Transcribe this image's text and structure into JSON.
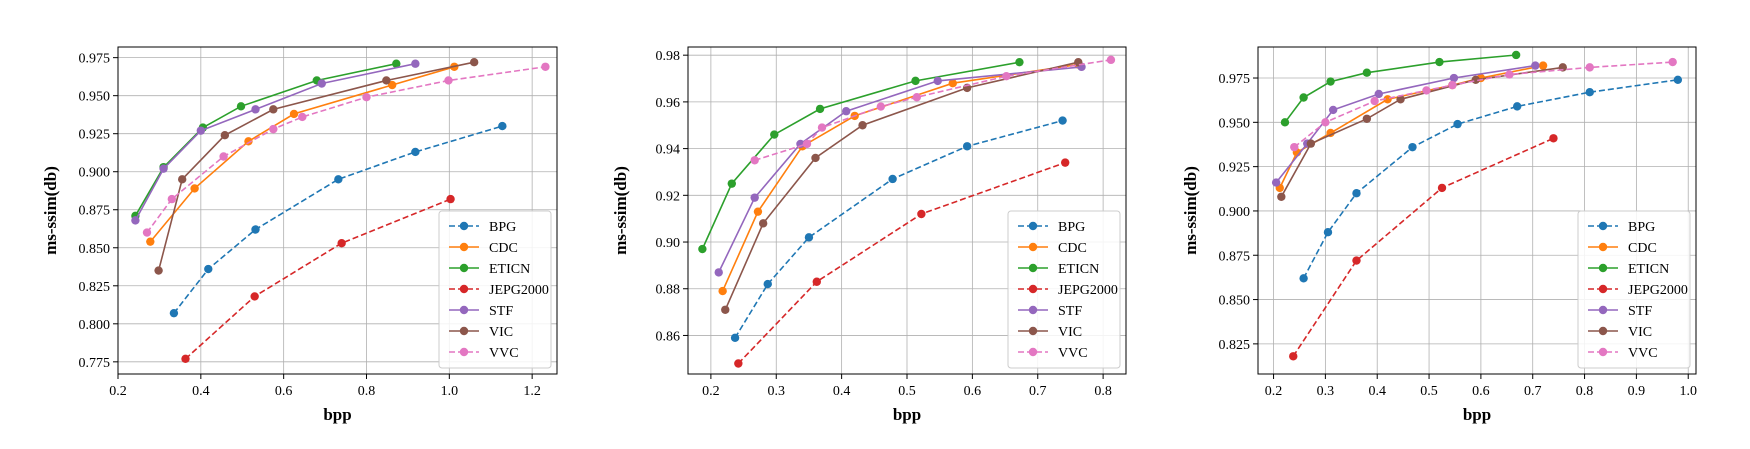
{
  "chart_data": [
    {
      "type": "line",
      "title": "",
      "xlabel": "bpp",
      "ylabel": "ms-ssim(db)",
      "xlim": [
        0.2,
        1.26
      ],
      "ylim": [
        0.767,
        0.982
      ],
      "xticks": [
        0.2,
        0.4,
        0.6,
        0.8,
        1.0,
        1.2
      ],
      "xtick_labels": [
        "0.2",
        "0.4",
        "0.6",
        "0.8",
        "1.0",
        "1.2"
      ],
      "yticks": [
        0.775,
        0.8,
        0.825,
        0.85,
        0.875,
        0.9,
        0.925,
        0.95,
        0.975
      ],
      "ytick_labels": [
        "0.775",
        "0.800",
        "0.825",
        "0.850",
        "0.875",
        "0.900",
        "0.925",
        "0.950",
        "0.975"
      ],
      "grid": true,
      "legend_position": "bottom-right",
      "series": [
        {
          "name": "BPG",
          "color": "#1f77b4",
          "style": "dashed",
          "x": [
            0.335,
            0.418,
            0.532,
            0.732,
            0.918,
            1.128
          ],
          "y": [
            0.807,
            0.836,
            0.862,
            0.895,
            0.913,
            0.93
          ]
        },
        {
          "name": "CDC",
          "color": "#ff7f0e",
          "style": "solid",
          "x": [
            0.278,
            0.385,
            0.515,
            0.625,
            0.862,
            1.012
          ],
          "y": [
            0.854,
            0.889,
            0.92,
            0.938,
            0.957,
            0.969
          ]
        },
        {
          "name": "ETICN",
          "color": "#2ca02c",
          "style": "solid",
          "x": [
            0.242,
            0.31,
            0.405,
            0.497,
            0.68,
            0.872
          ],
          "y": [
            0.871,
            0.903,
            0.929,
            0.943,
            0.96,
            0.971
          ]
        },
        {
          "name": "JEPG2000",
          "color": "#d62728",
          "style": "dashed",
          "x": [
            0.363,
            0.53,
            0.74,
            1.003
          ],
          "y": [
            0.777,
            0.818,
            0.853,
            0.882
          ]
        },
        {
          "name": "STF",
          "color": "#9467bd",
          "style": "solid",
          "x": [
            0.242,
            0.31,
            0.4,
            0.532,
            0.692,
            0.918
          ],
          "y": [
            0.868,
            0.902,
            0.927,
            0.941,
            0.958,
            0.971
          ]
        },
        {
          "name": "VIC",
          "color": "#8c564b",
          "style": "solid",
          "x": [
            0.298,
            0.355,
            0.458,
            0.575,
            0.848,
            1.06
          ],
          "y": [
            0.835,
            0.895,
            0.924,
            0.941,
            0.96,
            0.972
          ]
        },
        {
          "name": "VVC",
          "color": "#e377c2",
          "style": "dashed",
          "x": [
            0.27,
            0.33,
            0.455,
            0.575,
            0.645,
            0.8,
            0.998,
            1.232
          ],
          "y": [
            0.86,
            0.882,
            0.91,
            0.928,
            0.936,
            0.949,
            0.96,
            0.969
          ]
        }
      ]
    },
    {
      "type": "line",
      "title": "",
      "xlabel": "bpp",
      "ylabel": "ms-ssim(db)",
      "xlim": [
        0.165,
        0.835
      ],
      "ylim": [
        0.8435,
        0.9835
      ],
      "xticks": [
        0.2,
        0.3,
        0.4,
        0.5,
        0.6,
        0.7,
        0.8
      ],
      "xtick_labels": [
        "0.2",
        "0.3",
        "0.4",
        "0.5",
        "0.6",
        "0.7",
        "0.8"
      ],
      "yticks": [
        0.86,
        0.88,
        0.9,
        0.92,
        0.94,
        0.96,
        0.98
      ],
      "ytick_labels": [
        "0.86",
        "0.88",
        "0.90",
        "0.92",
        "0.94",
        "0.96",
        "0.98"
      ],
      "grid": true,
      "legend_position": "bottom-right",
      "series": [
        {
          "name": "BPG",
          "color": "#1f77b4",
          "style": "dashed",
          "x": [
            0.237,
            0.287,
            0.35,
            0.478,
            0.592,
            0.738
          ],
          "y": [
            0.859,
            0.882,
            0.902,
            0.927,
            0.941,
            0.952
          ]
        },
        {
          "name": "CDC",
          "color": "#ff7f0e",
          "style": "solid",
          "x": [
            0.218,
            0.272,
            0.34,
            0.42,
            0.57,
            0.762
          ],
          "y": [
            0.879,
            0.913,
            0.941,
            0.954,
            0.968,
            0.976
          ]
        },
        {
          "name": "ETICN",
          "color": "#2ca02c",
          "style": "solid",
          "x": [
            0.187,
            0.232,
            0.297,
            0.367,
            0.513,
            0.672
          ],
          "y": [
            0.897,
            0.925,
            0.946,
            0.957,
            0.969,
            0.977
          ]
        },
        {
          "name": "JEPG2000",
          "color": "#d62728",
          "style": "dashed",
          "x": [
            0.242,
            0.362,
            0.522,
            0.742
          ],
          "y": [
            0.848,
            0.883,
            0.912,
            0.934
          ]
        },
        {
          "name": "STF",
          "color": "#9467bd",
          "style": "solid",
          "x": [
            0.212,
            0.267,
            0.337,
            0.407,
            0.547,
            0.767
          ],
          "y": [
            0.887,
            0.919,
            0.942,
            0.956,
            0.969,
            0.975
          ]
        },
        {
          "name": "VIC",
          "color": "#8c564b",
          "style": "solid",
          "x": [
            0.222,
            0.28,
            0.36,
            0.432,
            0.592,
            0.762
          ],
          "y": [
            0.871,
            0.908,
            0.936,
            0.95,
            0.966,
            0.977
          ]
        },
        {
          "name": "VVC",
          "color": "#e377c2",
          "style": "dashed",
          "x": [
            0.267,
            0.347,
            0.37,
            0.46,
            0.515,
            0.652,
            0.812
          ],
          "y": [
            0.935,
            0.942,
            0.949,
            0.958,
            0.962,
            0.971,
            0.978
          ]
        }
      ]
    },
    {
      "type": "line",
      "title": "",
      "xlabel": "bpp",
      "ylabel": "ms-ssim(db)",
      "xlim": [
        0.17,
        1.015
      ],
      "ylim": [
        0.808,
        0.9925
      ],
      "xticks": [
        0.2,
        0.3,
        0.4,
        0.5,
        0.6,
        0.7,
        0.8,
        0.9,
        1.0
      ],
      "xtick_labels": [
        "0.2",
        "0.3",
        "0.4",
        "0.5",
        "0.6",
        "0.7",
        "0.8",
        "0.9",
        "1.0"
      ],
      "yticks": [
        0.825,
        0.85,
        0.875,
        0.9,
        0.925,
        0.95,
        0.975
      ],
      "ytick_labels": [
        "0.825",
        "0.850",
        "0.875",
        "0.900",
        "0.925",
        "0.950",
        "0.975"
      ],
      "grid": true,
      "legend_position": "bottom-right",
      "series": [
        {
          "name": "BPG",
          "color": "#1f77b4",
          "style": "dashed",
          "x": [
            0.258,
            0.305,
            0.36,
            0.468,
            0.555,
            0.67,
            0.81,
            0.98
          ],
          "y": [
            0.862,
            0.888,
            0.91,
            0.936,
            0.949,
            0.959,
            0.967,
            0.974
          ]
        },
        {
          "name": "CDC",
          "color": "#ff7f0e",
          "style": "solid",
          "x": [
            0.212,
            0.245,
            0.31,
            0.42,
            0.545,
            0.6,
            0.72
          ],
          "y": [
            0.913,
            0.933,
            0.944,
            0.963,
            0.971,
            0.975,
            0.982
          ]
        },
        {
          "name": "ETICN",
          "color": "#2ca02c",
          "style": "solid",
          "x": [
            0.222,
            0.258,
            0.31,
            0.38,
            0.52,
            0.668
          ],
          "y": [
            0.95,
            0.964,
            0.973,
            0.978,
            0.984,
            0.988
          ]
        },
        {
          "name": "JEPG2000",
          "color": "#d62728",
          "style": "dashed",
          "x": [
            0.238,
            0.36,
            0.525,
            0.74
          ],
          "y": [
            0.818,
            0.872,
            0.913,
            0.941
          ]
        },
        {
          "name": "STF",
          "color": "#9467bd",
          "style": "solid",
          "x": [
            0.205,
            0.265,
            0.315,
            0.403,
            0.548,
            0.705
          ],
          "y": [
            0.916,
            0.938,
            0.957,
            0.966,
            0.975,
            0.982
          ]
        },
        {
          "name": "VIC",
          "color": "#8c564b",
          "style": "solid",
          "x": [
            0.215,
            0.272,
            0.38,
            0.445,
            0.59,
            0.758
          ],
          "y": [
            0.908,
            0.938,
            0.952,
            0.963,
            0.974,
            0.981
          ]
        },
        {
          "name": "VVC",
          "color": "#e377c2",
          "style": "dashed",
          "x": [
            0.24,
            0.3,
            0.395,
            0.495,
            0.545,
            0.655,
            0.81,
            0.97
          ],
          "y": [
            0.936,
            0.95,
            0.962,
            0.968,
            0.971,
            0.977,
            0.981,
            0.984
          ]
        }
      ]
    }
  ]
}
